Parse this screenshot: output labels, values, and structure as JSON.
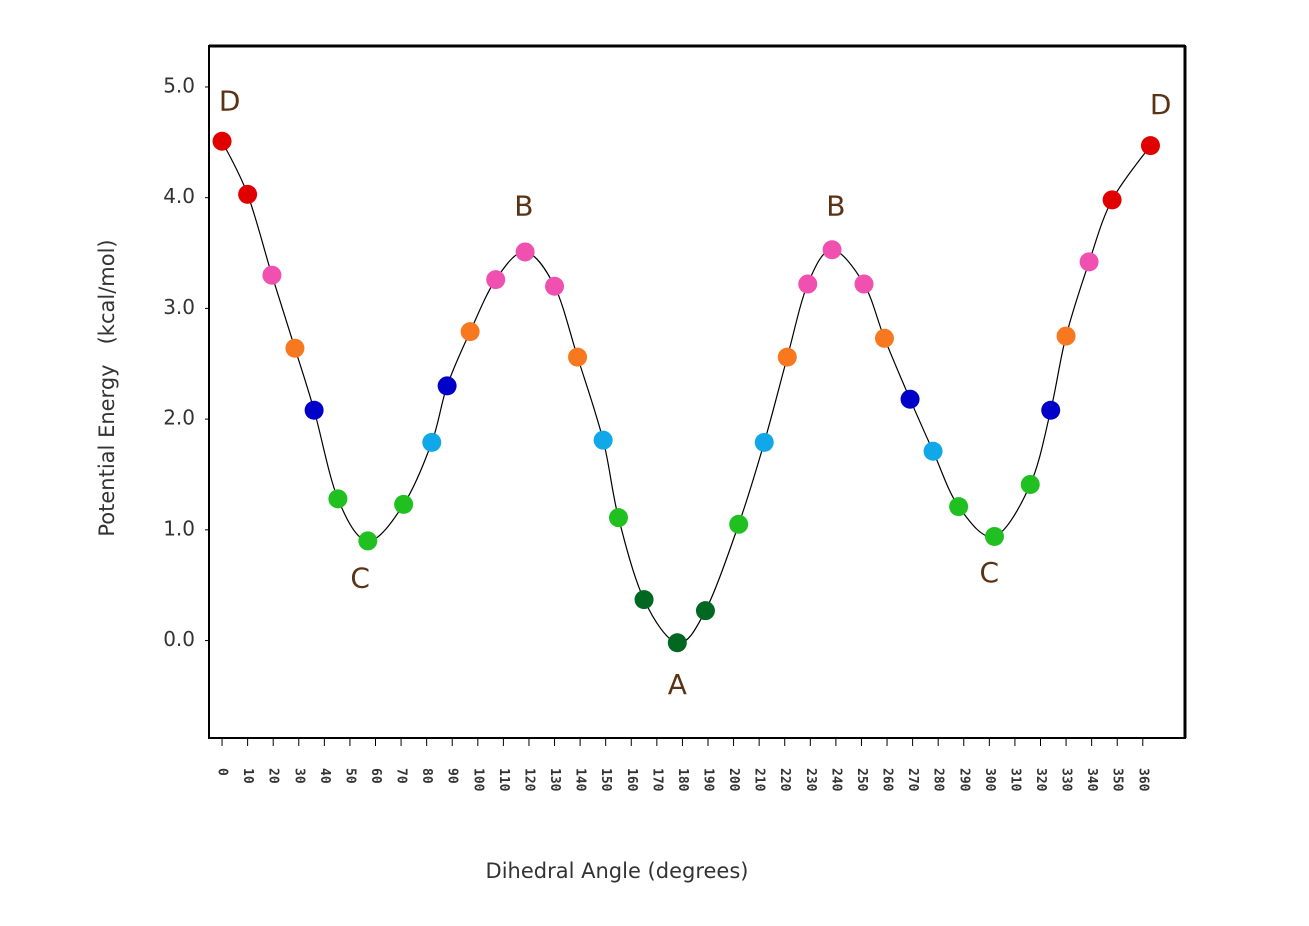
{
  "chart_data": {
    "type": "scatter",
    "x_label": "Dihedral Angle (degrees)",
    "y_label": "Potential Energy   (kcal/mol)",
    "x": [
      0,
      10,
      19.5,
      28.5,
      36,
      45.3,
      57,
      71,
      82,
      88,
      97,
      107,
      118.5,
      130,
      139,
      149,
      155,
      165,
      178,
      189,
      202,
      212,
      221,
      229,
      238.5,
      251,
      259,
      269,
      278,
      288,
      302,
      316,
      324,
      330,
      339,
      348,
      363
    ],
    "values": [
      4.51,
      4.03,
      3.3,
      2.64,
      2.08,
      1.28,
      0.9,
      1.23,
      1.79,
      2.3,
      2.79,
      3.26,
      3.51,
      3.2,
      2.56,
      1.81,
      1.11,
      0.37,
      -0.02,
      0.27,
      1.05,
      1.79,
      2.56,
      3.22,
      3.53,
      3.22,
      2.73,
      2.18,
      1.71,
      1.21,
      0.94,
      1.41,
      2.08,
      2.75,
      3.42,
      3.98,
      4.47
    ],
    "colors": [
      "#e00000",
      "#e00000",
      "#f050b0",
      "#f87820",
      "#0000c8",
      "#20c020",
      "#20c020",
      "#20c020",
      "#10a8e8",
      "#0000c8",
      "#f87820",
      "#f050b0",
      "#f050b0",
      "#f050b0",
      "#f87820",
      "#10a8e8",
      "#20c020",
      "#006820",
      "#006820",
      "#006820",
      "#20c020",
      "#10a8e8",
      "#f87820",
      "#f050b0",
      "#f050b0",
      "#f050b0",
      "#f87820",
      "#0000c8",
      "#10a8e8",
      "#20c020",
      "#20c020",
      "#20c020",
      "#0000c8",
      "#f87820",
      "#f050b0",
      "#e00000",
      "#e00000"
    ],
    "line_color": "#000000",
    "xlim": [
      -5.1,
      376.5
    ],
    "ylim": [
      -0.88,
      5.37
    ],
    "xticks": [
      0,
      10,
      20,
      30,
      40,
      50,
      60,
      70,
      80,
      90,
      100,
      110,
      120,
      130,
      140,
      150,
      160,
      170,
      180,
      190,
      200,
      210,
      220,
      230,
      240,
      250,
      260,
      270,
      280,
      290,
      300,
      310,
      320,
      330,
      340,
      350,
      360
    ],
    "yticks": [
      {
        "value": 0,
        "label": "0.0"
      },
      {
        "value": 1,
        "label": "1.0"
      },
      {
        "value": 2,
        "label": "2.0"
      },
      {
        "value": 3,
        "label": "3.0"
      },
      {
        "value": 4,
        "label": "4.0"
      },
      {
        "value": 5,
        "label": "5.0"
      }
    ],
    "annotations": [
      {
        "text": "D",
        "x": 3,
        "y": 4.86
      },
      {
        "text": "B",
        "x": 118,
        "y": 3.91
      },
      {
        "text": "C",
        "x": 54,
        "y": 0.55
      },
      {
        "text": "A",
        "x": 178,
        "y": -0.41
      },
      {
        "text": "B",
        "x": 240,
        "y": 3.91
      },
      {
        "text": "C",
        "x": 300,
        "y": 0.6
      },
      {
        "text": "D",
        "x": 367,
        "y": 4.83
      }
    ]
  }
}
